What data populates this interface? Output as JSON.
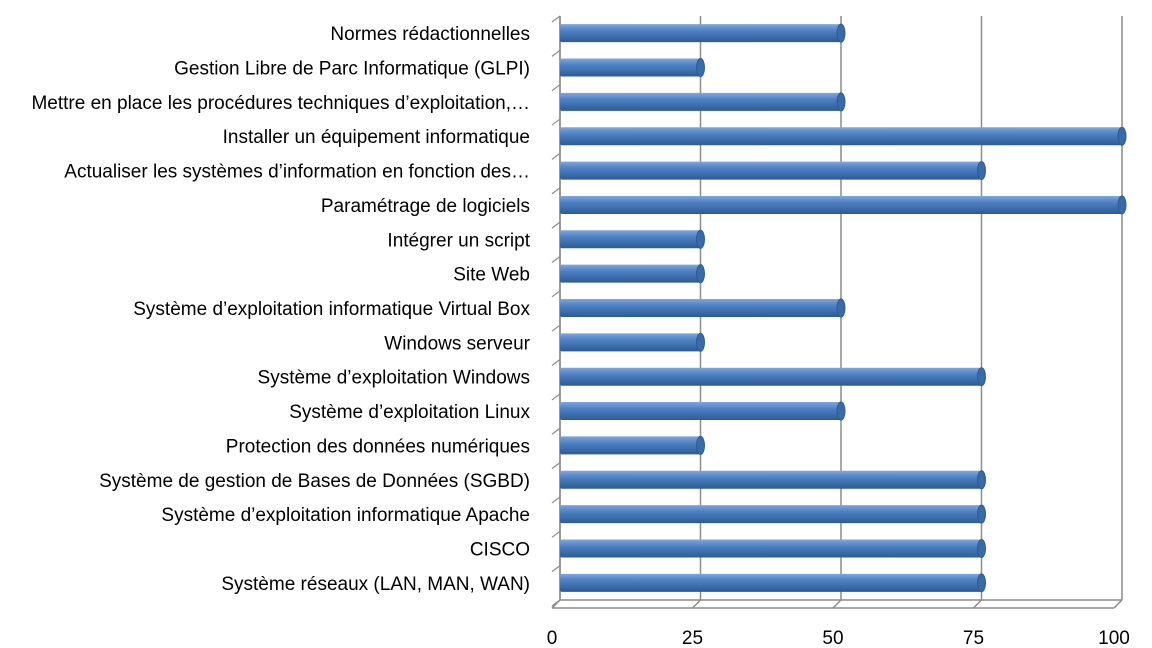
{
  "chart_data": {
    "type": "bar",
    "orientation": "horizontal",
    "title": "",
    "xlabel": "",
    "ylabel": "",
    "categories": [
      "Normes rédactionnelles",
      "Gestion Libre de Parc Informatique (GLPI)",
      "Mettre en place les procédures techniques d’exploitation,…",
      "Installer un équipement informatique",
      "Actualiser les systèmes d’information en fonction des…",
      "Paramétrage de logiciels",
      "Intégrer un script",
      "Site Web",
      "Système d’exploitation informatique Virtual Box",
      "Windows serveur",
      "Système d’exploitation Windows",
      "Système d’exploitation Linux",
      "Protection des données numériques",
      "Système de gestion de Bases de Données (SGBD)",
      "Système d’exploitation informatique Apache",
      "CISCO",
      "Système réseaux (LAN, MAN, WAN)"
    ],
    "values": [
      50,
      25,
      50,
      100,
      75,
      100,
      25,
      25,
      50,
      25,
      75,
      50,
      25,
      75,
      75,
      75,
      75
    ],
    "xlim": [
      0,
      100
    ],
    "xticks": [
      "0",
      "25",
      "50",
      "75",
      "100"
    ],
    "grid": true,
    "legend": "none",
    "colors": {
      "bar": "#4a7ebb",
      "bar_light": "#8fb4e3",
      "bar_dark": "#2c5a95",
      "grid": "#8c8c8c"
    }
  }
}
